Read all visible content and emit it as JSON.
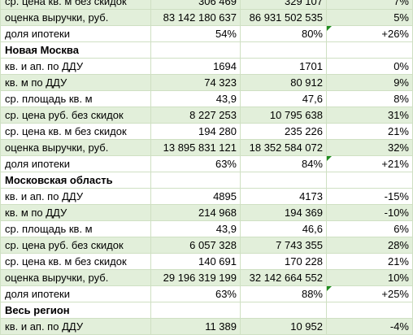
{
  "rows": [
    {
      "label": "ср. цена кв. м без скидок",
      "v1": "306 469",
      "v2": "329 107",
      "v3": "7%",
      "green": true
    },
    {
      "label": "оценка выручки, руб.",
      "v1": "83 142 180 637",
      "v2": "86 931 502 535",
      "v3": "5%",
      "green": true
    },
    {
      "label": "доля ипотеки",
      "v1": "54%",
      "v2": "80%",
      "v3": "+26%",
      "green": false,
      "flag": true
    },
    {
      "label": "Новая Москва",
      "section": true
    },
    {
      "label": "кв. и ап. по ДДУ",
      "v1": "1694",
      "v2": "1701",
      "v3": "0%",
      "green": false
    },
    {
      "label": "кв. м по ДДУ",
      "v1": "74 323",
      "v2": "80 912",
      "v3": "9%",
      "green": true
    },
    {
      "label": "ср. площадь кв. м",
      "v1": "43,9",
      "v2": "47,6",
      "v3": "8%",
      "green": false
    },
    {
      "label": "ср. цена руб. без скидок",
      "v1": "8 227 253",
      "v2": "10 795 638",
      "v3": "31%",
      "green": true
    },
    {
      "label": "ср. цена кв. м без скидок",
      "v1": "194 280",
      "v2": "235 226",
      "v3": "21%",
      "green": false
    },
    {
      "label": "оценка выручки, руб.",
      "v1": "13 895 831 121",
      "v2": "18 352 584 072",
      "v3": "32%",
      "green": true
    },
    {
      "label": "доля ипотеки",
      "v1": "63%",
      "v2": "84%",
      "v3": "+21%",
      "green": false,
      "flag": true
    },
    {
      "label": "Московская область",
      "section": true
    },
    {
      "label": "кв. и ап. по ДДУ",
      "v1": "4895",
      "v2": "4173",
      "v3": "-15%",
      "green": false
    },
    {
      "label": "кв. м по ДДУ",
      "v1": "214 968",
      "v2": "194 369",
      "v3": "-10%",
      "green": true
    },
    {
      "label": "ср. площадь кв. м",
      "v1": "43,9",
      "v2": "46,6",
      "v3": "6%",
      "green": false
    },
    {
      "label": "ср. цена руб. без скидок",
      "v1": "6 057 328",
      "v2": "7 743 355",
      "v3": "28%",
      "green": true
    },
    {
      "label": "ср. цена кв. м без скидок",
      "v1": "140 691",
      "v2": "170 228",
      "v3": "21%",
      "green": false
    },
    {
      "label": "оценка выручки, руб.",
      "v1": "29 196 319 199",
      "v2": "32 142 664 552",
      "v3": "10%",
      "green": true
    },
    {
      "label": "доля ипотеки",
      "v1": "63%",
      "v2": "88%",
      "v3": "+25%",
      "green": false,
      "flag": true
    },
    {
      "label": "Весь регион",
      "section": true
    },
    {
      "label": "кв. и ап. по ДДУ",
      "v1": "11 389",
      "v2": "10 952",
      "v3": "-4%",
      "green": true
    }
  ]
}
